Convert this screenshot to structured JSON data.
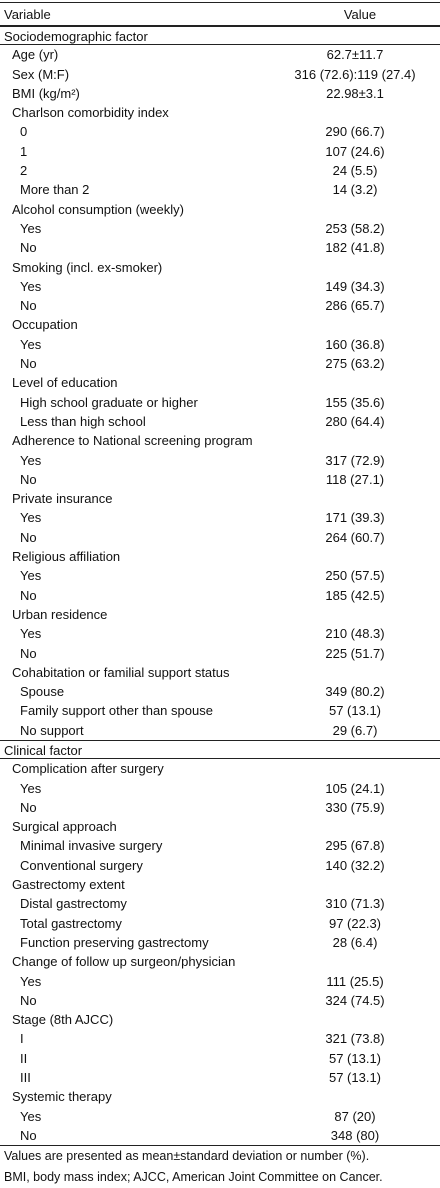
{
  "table": {
    "header": [
      "Variable",
      "Value"
    ],
    "sections": [
      {
        "title": "Sociodemographic factor",
        "rows": [
          {
            "label": "Age (yr)",
            "value": "62.7±11.7"
          },
          {
            "label": "Sex (M:F)",
            "value": "316 (72.6):119 (27.4)"
          },
          {
            "label": "BMI (kg/m²)",
            "value": "22.98±3.1"
          },
          {
            "label": "Charlson comorbidity index",
            "items": [
              {
                "label": "0",
                "value": "290 (66.7)"
              },
              {
                "label": "1",
                "value": "107 (24.6)"
              },
              {
                "label": "2",
                "value": "24 (5.5)"
              },
              {
                "label": "More than 2",
                "value": "14 (3.2)"
              }
            ]
          },
          {
            "label": "Alcohol consumption (weekly)",
            "items": [
              {
                "label": "Yes",
                "value": "253 (58.2)"
              },
              {
                "label": "No",
                "value": "182 (41.8)"
              }
            ]
          },
          {
            "label": "Smoking (incl. ex-smoker)",
            "items": [
              {
                "label": "Yes",
                "value": "149 (34.3)"
              },
              {
                "label": "No",
                "value": "286 (65.7)"
              }
            ]
          },
          {
            "label": "Occupation",
            "items": [
              {
                "label": "Yes",
                "value": "160 (36.8)"
              },
              {
                "label": "No",
                "value": "275 (63.2)"
              }
            ]
          },
          {
            "label": "Level of education",
            "items": [
              {
                "label": "High school graduate or higher",
                "value": "155 (35.6)"
              },
              {
                "label": "Less than high school",
                "value": "280 (64.4)"
              }
            ]
          },
          {
            "label": "Adherence to National screening program",
            "items": [
              {
                "label": "Yes",
                "value": "317 (72.9)"
              },
              {
                "label": "No",
                "value": "118 (27.1)"
              }
            ]
          },
          {
            "label": "Private insurance",
            "items": [
              {
                "label": "Yes",
                "value": "171 (39.3)"
              },
              {
                "label": "No",
                "value": "264 (60.7)"
              }
            ]
          },
          {
            "label": "Religious affiliation",
            "items": [
              {
                "label": "Yes",
                "value": "250 (57.5)"
              },
              {
                "label": "No",
                "value": "185 (42.5)"
              }
            ]
          },
          {
            "label": "Urban residence",
            "items": [
              {
                "label": "Yes",
                "value": "210 (48.3)"
              },
              {
                "label": "No",
                "value": "225 (51.7)"
              }
            ]
          },
          {
            "label": "Cohabitation or familial support status",
            "items": [
              {
                "label": "Spouse",
                "value": "349 (80.2)"
              },
              {
                "label": "Family support other than spouse",
                "value": "57 (13.1)"
              },
              {
                "label": "No support",
                "value": "29 (6.7)"
              }
            ]
          }
        ]
      },
      {
        "title": "Clinical factor",
        "rows": [
          {
            "label": "Complication after surgery",
            "items": [
              {
                "label": "Yes",
                "value": "105 (24.1)"
              },
              {
                "label": "No",
                "value": "330 (75.9)"
              }
            ]
          },
          {
            "label": "Surgical approach",
            "items": [
              {
                "label": "Minimal invasive surgery",
                "value": "295 (67.8)"
              },
              {
                "label": "Conventional surgery",
                "value": "140 (32.2)"
              }
            ]
          },
          {
            "label": "Gastrectomy extent",
            "items": [
              {
                "label": "Distal gastrectomy",
                "value": "310 (71.3)"
              },
              {
                "label": "Total gastrectomy",
                "value": "97 (22.3)"
              },
              {
                "label": "Function preserving gastrectomy",
                "value": "28 (6.4)"
              }
            ]
          },
          {
            "label": "Change of follow up surgeon/physician",
            "items": [
              {
                "label": "Yes",
                "value": "111 (25.5)"
              },
              {
                "label": "No",
                "value": "324 (74.5)"
              }
            ]
          },
          {
            "label": "Stage (8th AJCC)",
            "items": [
              {
                "label": "I",
                "value": "321 (73.8)"
              },
              {
                "label": "II",
                "value": "57 (13.1)"
              },
              {
                "label": "III",
                "value": "57 (13.1)"
              }
            ]
          },
          {
            "label": "Systemic therapy",
            "items": [
              {
                "label": "Yes",
                "value": "87 (20)"
              },
              {
                "label": "No",
                "value": "348 (80)"
              }
            ]
          }
        ]
      }
    ],
    "footnotes": [
      "Values are presented as mean±standard deviation or number (%).",
      "BMI, body mass index; AJCC, American Joint Committee on Cancer."
    ]
  }
}
